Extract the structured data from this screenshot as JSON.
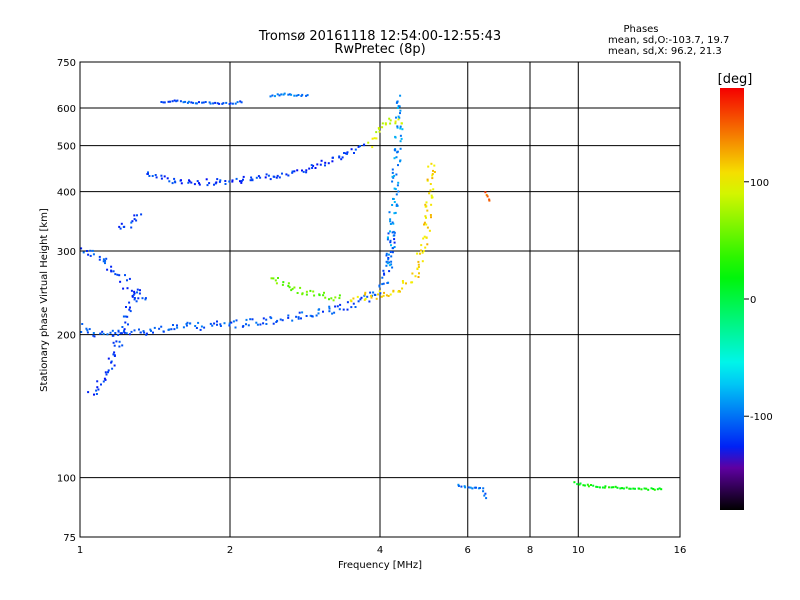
{
  "chart_data": {
    "type": "scatter",
    "title": "Tromsø 20161118 12:54:00-12:55:43",
    "subtitle": "RwPretec (8p)",
    "xlabel": "Frequency [MHz]",
    "ylabel": "Stationary phase Virtual Height [km]",
    "x_scale": "log",
    "y_scale": "log",
    "xlim": [
      1,
      16
    ],
    "ylim": [
      75,
      750
    ],
    "x_ticks": [
      1,
      2,
      4,
      6,
      8,
      10,
      16
    ],
    "x_tick_labels": [
      "1",
      "2",
      "4",
      "6",
      "8",
      "10",
      "16"
    ],
    "y_ticks": [
      75,
      100,
      200,
      300,
      400,
      500,
      600,
      750
    ],
    "y_tick_labels": [
      "75",
      "100",
      "200",
      "300",
      "400",
      "500",
      "600",
      "750"
    ],
    "grid": true,
    "stats": {
      "heading": "Phases",
      "line1": "mean, sd,O:-103.7, 19.7",
      "line2": "mean, sd,X:  96.2, 21.3"
    },
    "colorbar": {
      "label": "[deg]",
      "range": [
        -180,
        180
      ],
      "ticks": [
        -100,
        0,
        100
      ],
      "tick_labels": [
        "-100",
        "0",
        "100"
      ],
      "colormap": "rainbow"
    },
    "traces": [
      {
        "x": [
          1.0,
          1.02,
          1.05,
          1.1,
          1.2,
          1.35,
          1.55,
          1.8,
          2.1,
          2.4,
          2.8,
          3.2,
          3.6,
          3.9,
          4.05,
          4.15,
          4.22
        ],
        "y": [
          210,
          205,
          202,
          201,
          202,
          205,
          208,
          210,
          212,
          215,
          220,
          226,
          234,
          245,
          258,
          285,
          330
        ],
        "phase": -110,
        "spread": 4
      },
      {
        "x": [
          1.05,
          1.08,
          1.12,
          1.16,
          1.2,
          1.25,
          1.3
        ],
        "y": [
          150,
          155,
          165,
          180,
          200,
          230,
          250
        ],
        "phase": -120,
        "spread": 4
      },
      {
        "x": [
          1.0,
          1.05,
          1.1,
          1.14,
          1.18,
          1.22,
          1.26,
          1.3,
          1.35
        ],
        "y": [
          300,
          298,
          290,
          280,
          270,
          260,
          252,
          245,
          240
        ],
        "phase": -115,
        "spread": 5
      },
      {
        "x": [
          1.2,
          1.24,
          1.28,
          1.32
        ],
        "y": [
          330,
          340,
          350,
          360
        ],
        "phase": -115,
        "spread": 4
      },
      {
        "x": [
          1.35,
          1.5,
          1.7,
          1.9,
          2.1,
          2.4,
          2.8,
          3.2,
          3.5,
          3.7
        ],
        "y": [
          440,
          425,
          420,
          422,
          425,
          432,
          445,
          470,
          490,
          505
        ],
        "phase": -120,
        "spread": 3
      },
      {
        "x": [
          4.15,
          4.2,
          4.25,
          4.3,
          4.33,
          4.35,
          4.37
        ],
        "y": [
          280,
          320,
          380,
          450,
          520,
          580,
          640
        ],
        "phase": -90,
        "spread": 4
      },
      {
        "x": [
          3.5,
          3.8,
          4.1,
          4.4,
          4.7,
          4.9,
          5.0,
          5.05
        ],
        "y": [
          240,
          242,
          245,
          252,
          270,
          310,
          380,
          460
        ],
        "phase": 110,
        "spread": 4
      },
      {
        "x": [
          2.4,
          2.55,
          2.7,
          2.9,
          3.1,
          3.3
        ],
        "y": [
          265,
          258,
          250,
          245,
          242,
          240
        ],
        "phase": 55,
        "spread": 3
      },
      {
        "x": [
          1.45,
          1.55,
          1.6,
          1.75,
          1.9,
          2.0,
          2.1
        ],
        "y": [
          620,
          625,
          618,
          620,
          615,
          618,
          620
        ],
        "phase": -110,
        "spread": 1
      },
      {
        "x": [
          2.4,
          2.55,
          2.7,
          2.85
        ],
        "y": [
          640,
          645,
          640,
          642
        ],
        "phase": -100,
        "spread": 1
      },
      {
        "x": [
          3.8,
          4.0,
          4.2,
          4.4
        ],
        "y": [
          505,
          550,
          570,
          560
        ],
        "phase": 90,
        "spread": 3
      },
      {
        "x": [
          9.8,
          10.3,
          11.0,
          11.8,
          12.7,
          13.8,
          14.6
        ],
        "y": [
          98,
          97,
          96,
          96,
          95,
          95,
          95
        ],
        "phase": 20,
        "spread": 1
      },
      {
        "x": [
          5.7,
          6.4,
          6.5
        ],
        "y": [
          97,
          95,
          91
        ],
        "phase": -100,
        "spread": 1
      },
      {
        "x": [
          6.5,
          6.6
        ],
        "y": [
          400,
          385
        ],
        "phase": 150,
        "spread": 1
      }
    ]
  }
}
